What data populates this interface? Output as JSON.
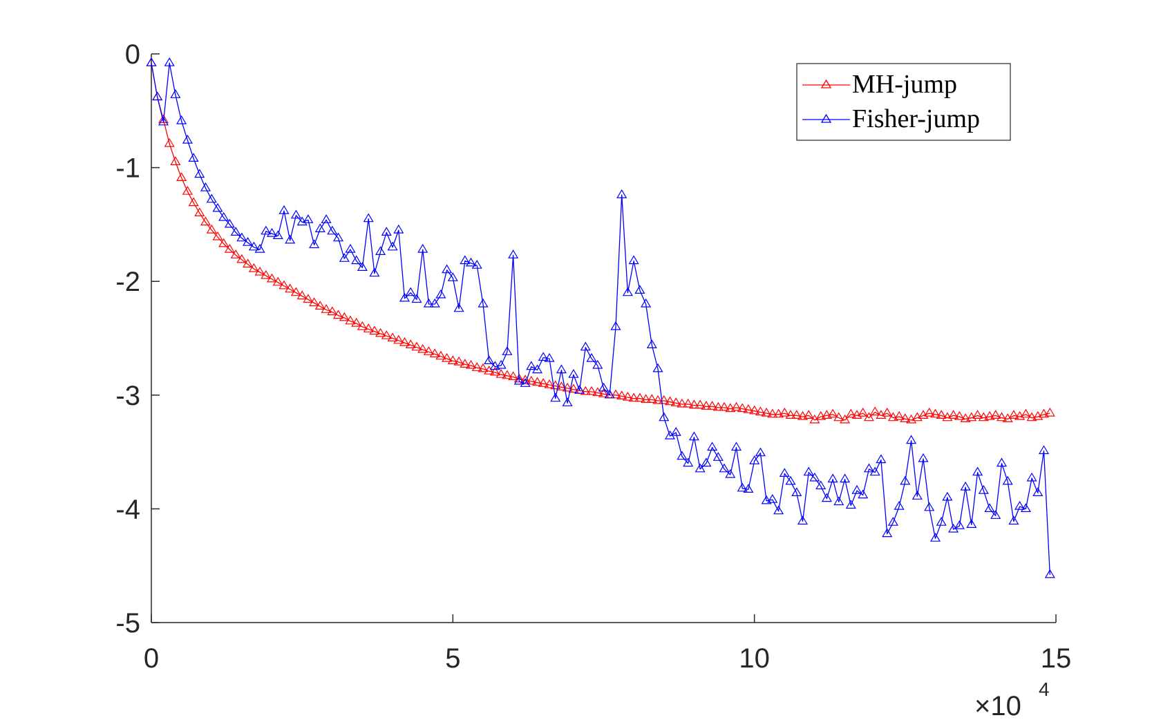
{
  "chart_data": {
    "type": "line",
    "title": "",
    "xlabel": "",
    "ylabel": "",
    "xlim": [
      0,
      15
    ],
    "ylim": [
      -5,
      0
    ],
    "x_exponent_label": {
      "base": "×10",
      "power": "4"
    },
    "xticks": [
      "0",
      "5",
      "10",
      "15"
    ],
    "yticks": [
      "0",
      "-1",
      "-2",
      "-3",
      "-4",
      "-5"
    ],
    "grid": false,
    "legend_position": "top-right",
    "marker": "triangle",
    "series": [
      {
        "name": "MH-jump",
        "color": "#ff0000",
        "x": [
          0.0,
          0.1,
          0.2,
          0.3,
          0.4,
          0.5,
          0.6,
          0.7,
          0.8,
          0.9,
          1.0,
          1.1,
          1.2,
          1.3,
          1.4,
          1.5,
          1.6,
          1.7,
          1.8,
          1.9,
          2.0,
          2.1,
          2.2,
          2.3,
          2.4,
          2.5,
          2.6,
          2.7,
          2.8,
          2.9,
          3.0,
          3.1,
          3.2,
          3.3,
          3.4,
          3.5,
          3.6,
          3.7,
          3.8,
          3.9,
          4.0,
          4.1,
          4.2,
          4.3,
          4.4,
          4.5,
          4.6,
          4.7,
          4.8,
          4.9,
          5.0,
          5.1,
          5.2,
          5.3,
          5.4,
          5.5,
          5.6,
          5.7,
          5.8,
          5.9,
          6.0,
          6.1,
          6.2,
          6.3,
          6.4,
          6.5,
          6.6,
          6.7,
          6.8,
          6.9,
          7.0,
          7.1,
          7.2,
          7.3,
          7.4,
          7.5,
          7.6,
          7.7,
          7.8,
          7.9,
          8.0,
          8.1,
          8.2,
          8.3,
          8.4,
          8.5,
          8.6,
          8.7,
          8.8,
          8.9,
          9.0,
          9.1,
          9.2,
          9.3,
          9.4,
          9.5,
          9.6,
          9.7,
          9.8,
          9.9,
          10.0,
          10.1,
          10.2,
          10.3,
          10.4,
          10.5,
          10.6,
          10.7,
          10.8,
          10.9,
          11.0,
          11.1,
          11.2,
          11.3,
          11.4,
          11.5,
          11.6,
          11.7,
          11.8,
          11.9,
          12.0,
          12.1,
          12.2,
          12.3,
          12.4,
          12.5,
          12.6,
          12.7,
          12.8,
          12.9,
          13.0,
          13.1,
          13.2,
          13.3,
          13.4,
          13.5,
          13.6,
          13.7,
          13.8,
          13.9,
          14.0,
          14.1,
          14.2,
          14.3,
          14.4,
          14.5,
          14.6,
          14.7,
          14.8,
          14.9
        ],
        "y": [
          -0.08,
          -0.38,
          -0.58,
          -0.79,
          -0.95,
          -1.09,
          -1.21,
          -1.31,
          -1.4,
          -1.48,
          -1.55,
          -1.61,
          -1.67,
          -1.72,
          -1.77,
          -1.81,
          -1.85,
          -1.89,
          -1.92,
          -1.95,
          -1.98,
          -2.01,
          -2.04,
          -2.07,
          -2.1,
          -2.13,
          -2.16,
          -2.19,
          -2.22,
          -2.25,
          -2.27,
          -2.3,
          -2.32,
          -2.35,
          -2.37,
          -2.4,
          -2.42,
          -2.44,
          -2.46,
          -2.48,
          -2.5,
          -2.52,
          -2.54,
          -2.56,
          -2.58,
          -2.6,
          -2.62,
          -2.64,
          -2.66,
          -2.68,
          -2.7,
          -2.71,
          -2.73,
          -2.74,
          -2.76,
          -2.77,
          -2.79,
          -2.8,
          -2.82,
          -2.83,
          -2.84,
          -2.86,
          -2.87,
          -2.88,
          -2.89,
          -2.9,
          -2.91,
          -2.92,
          -2.93,
          -2.94,
          -2.95,
          -2.96,
          -2.97,
          -2.97,
          -2.98,
          -2.99,
          -3.0,
          -3.0,
          -3.01,
          -3.02,
          -3.03,
          -3.03,
          -3.04,
          -3.04,
          -3.05,
          -3.05,
          -3.06,
          -3.07,
          -3.08,
          -3.08,
          -3.09,
          -3.09,
          -3.1,
          -3.1,
          -3.11,
          -3.11,
          -3.12,
          -3.11,
          -3.12,
          -3.13,
          -3.14,
          -3.15,
          -3.16,
          -3.17,
          -3.17,
          -3.16,
          -3.18,
          -3.18,
          -3.19,
          -3.18,
          -3.22,
          -3.19,
          -3.18,
          -3.17,
          -3.2,
          -3.22,
          -3.17,
          -3.18,
          -3.16,
          -3.2,
          -3.15,
          -3.18,
          -3.16,
          -3.2,
          -3.19,
          -3.21,
          -3.22,
          -3.2,
          -3.18,
          -3.16,
          -3.17,
          -3.18,
          -3.2,
          -3.18,
          -3.19,
          -3.21,
          -3.2,
          -3.18,
          -3.2,
          -3.19,
          -3.18,
          -3.2,
          -3.21,
          -3.18,
          -3.19,
          -3.17,
          -3.2,
          -3.19,
          -3.17,
          -3.16
        ]
      },
      {
        "name": "Fisher-jump",
        "color": "#0000ff",
        "x": [
          0.0,
          0.1,
          0.2,
          0.3,
          0.4,
          0.5,
          0.6,
          0.7,
          0.8,
          0.9,
          1.0,
          1.1,
          1.2,
          1.3,
          1.4,
          1.5,
          1.6,
          1.7,
          1.8,
          1.9,
          2.0,
          2.1,
          2.2,
          2.3,
          2.4,
          2.5,
          2.6,
          2.7,
          2.8,
          2.9,
          3.0,
          3.1,
          3.2,
          3.3,
          3.4,
          3.5,
          3.6,
          3.7,
          3.8,
          3.9,
          4.0,
          4.1,
          4.2,
          4.3,
          4.4,
          4.5,
          4.6,
          4.7,
          4.8,
          4.9,
          5.0,
          5.1,
          5.2,
          5.3,
          5.4,
          5.5,
          5.6,
          5.7,
          5.8,
          5.9,
          6.0,
          6.1,
          6.2,
          6.3,
          6.4,
          6.5,
          6.6,
          6.7,
          6.8,
          6.9,
          7.0,
          7.1,
          7.2,
          7.3,
          7.4,
          7.5,
          7.6,
          7.7,
          7.8,
          7.9,
          8.0,
          8.1,
          8.2,
          8.3,
          8.4,
          8.5,
          8.6,
          8.7,
          8.8,
          8.9,
          9.0,
          9.1,
          9.2,
          9.3,
          9.4,
          9.5,
          9.6,
          9.7,
          9.8,
          9.9,
          10.0,
          10.1,
          10.2,
          10.3,
          10.4,
          10.5,
          10.6,
          10.7,
          10.8,
          10.9,
          11.0,
          11.1,
          11.2,
          11.3,
          11.4,
          11.5,
          11.6,
          11.7,
          11.8,
          11.9,
          12.0,
          12.1,
          12.2,
          12.3,
          12.4,
          12.5,
          12.6,
          12.7,
          12.8,
          12.9,
          13.0,
          13.1,
          13.2,
          13.3,
          13.4,
          13.5,
          13.6,
          13.7,
          13.8,
          13.9,
          14.0,
          14.1,
          14.2,
          14.3,
          14.4,
          14.5,
          14.6,
          14.7,
          14.8,
          14.9
        ],
        "y": [
          -0.08,
          -0.38,
          -0.6,
          -0.08,
          -0.36,
          -0.59,
          -0.76,
          -0.92,
          -1.06,
          -1.18,
          -1.28,
          -1.36,
          -1.44,
          -1.5,
          -1.57,
          -1.62,
          -1.66,
          -1.7,
          -1.72,
          -1.56,
          -1.58,
          -1.6,
          -1.38,
          -1.64,
          -1.42,
          -1.48,
          -1.46,
          -1.68,
          -1.54,
          -1.46,
          -1.56,
          -1.62,
          -1.8,
          -1.72,
          -1.82,
          -1.88,
          -1.45,
          -1.93,
          -1.74,
          -1.57,
          -1.7,
          -1.55,
          -2.15,
          -2.1,
          -2.16,
          -1.72,
          -2.2,
          -2.2,
          -2.12,
          -1.9,
          -1.97,
          -2.24,
          -1.82,
          -1.84,
          -1.86,
          -2.2,
          -2.7,
          -2.75,
          -2.74,
          -2.62,
          -1.77,
          -2.88,
          -2.9,
          -2.75,
          -2.78,
          -2.67,
          -2.68,
          -3.03,
          -2.78,
          -3.07,
          -2.82,
          -2.96,
          -2.58,
          -2.68,
          -2.74,
          -2.94,
          -3.0,
          -2.4,
          -1.24,
          -2.1,
          -1.82,
          -2.08,
          -2.2,
          -2.56,
          -2.77,
          -3.2,
          -3.36,
          -3.33,
          -3.54,
          -3.6,
          -3.37,
          -3.65,
          -3.6,
          -3.46,
          -3.55,
          -3.65,
          -3.7,
          -3.46,
          -3.82,
          -3.83,
          -3.58,
          -3.51,
          -3.93,
          -3.92,
          -4.02,
          -3.69,
          -3.76,
          -3.86,
          -4.11,
          -3.68,
          -3.73,
          -3.8,
          -3.91,
          -3.74,
          -3.94,
          -3.74,
          -3.97,
          -3.84,
          -3.88,
          -3.65,
          -3.68,
          -3.57,
          -4.22,
          -4.12,
          -3.98,
          -3.76,
          -3.4,
          -3.89,
          -3.56,
          -3.99,
          -4.26,
          -4.12,
          -3.9,
          -4.18,
          -4.15,
          -3.81,
          -4.14,
          -3.68,
          -3.84,
          -4.0,
          -4.06,
          -3.6,
          -3.76,
          -4.11,
          -3.98,
          -4.0,
          -3.73,
          -3.86,
          -3.49,
          -4.58
        ]
      }
    ]
  }
}
